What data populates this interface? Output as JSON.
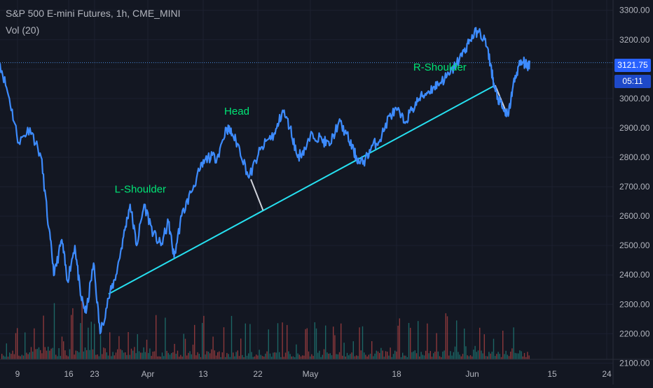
{
  "header": {
    "title": "S&P 500 E-mini Futures, 1h, CME_MINI",
    "volume_label": "Vol (20)"
  },
  "price_axis": {
    "current_price": "3121.75",
    "countdown": "05:11"
  },
  "colors": {
    "background": "#131722",
    "price_line": "#3d8bfd",
    "trend_line": "#26e0f0",
    "annotation_text": "#00e676",
    "vol_up": "#26a69a",
    "vol_down": "#ef5350",
    "axis_text": "#b2b5be",
    "grid": "#1c2030"
  },
  "chart_data": {
    "type": "line",
    "title": "S&P 500 E-mini Futures, 1h, CME_MINI",
    "xlabel": "",
    "ylabel": "",
    "x_tick_labels": [
      "9",
      "16",
      "23",
      "Apr",
      "13",
      "22",
      "May",
      "18",
      "Jun",
      "15",
      "24"
    ],
    "x_range_days": [
      3.0,
      68.5
    ],
    "y_ticks": [
      2100,
      2200,
      2300,
      2400,
      2500,
      2600,
      2700,
      2800,
      2900,
      3000,
      3100,
      3200,
      3300
    ],
    "y_tick_labels": [
      "2100.00",
      "2200.00",
      "2300.00",
      "2400.00",
      "2500.00",
      "2600.00",
      "2700.00",
      "2800.00",
      "2900.00",
      "3000.00",
      "3100.00",
      "3200.00",
      "3300.00"
    ],
    "ylim": [
      2070,
      3335
    ],
    "series": [
      {
        "type": "line",
        "points": [
          [
            3.0,
            3120
          ],
          [
            4.0,
            3000
          ],
          [
            5.0,
            2850
          ],
          [
            6.2,
            2900
          ],
          [
            7.4,
            2800
          ],
          [
            8.2,
            2560
          ],
          [
            8.8,
            2400
          ],
          [
            9.6,
            2520
          ],
          [
            10.2,
            2380
          ],
          [
            11.0,
            2500
          ],
          [
            11.6,
            2330
          ],
          [
            12.2,
            2270
          ],
          [
            13.0,
            2440
          ],
          [
            13.7,
            2200
          ],
          [
            14.6,
            2320
          ],
          [
            15.4,
            2400
          ],
          [
            16.2,
            2530
          ],
          [
            16.9,
            2640
          ],
          [
            17.6,
            2500
          ],
          [
            18.4,
            2640
          ],
          [
            19.4,
            2540
          ],
          [
            20.2,
            2500
          ],
          [
            21.0,
            2580
          ],
          [
            21.6,
            2460
          ],
          [
            22.4,
            2600
          ],
          [
            23.4,
            2680
          ],
          [
            24.4,
            2760
          ],
          [
            25.2,
            2800
          ],
          [
            26.2,
            2800
          ],
          [
            27.2,
            2900
          ],
          [
            27.8,
            2880
          ],
          [
            28.6,
            2830
          ],
          [
            29.6,
            2730
          ],
          [
            30.6,
            2810
          ],
          [
            31.6,
            2860
          ],
          [
            32.4,
            2880
          ],
          [
            33.2,
            2960
          ],
          [
            34.0,
            2900
          ],
          [
            34.8,
            2800
          ],
          [
            35.6,
            2830
          ],
          [
            36.4,
            2880
          ],
          [
            37.4,
            2860
          ],
          [
            38.2,
            2840
          ],
          [
            39.2,
            2920
          ],
          [
            40.0,
            2880
          ],
          [
            40.8,
            2820
          ],
          [
            41.4,
            2780
          ],
          [
            42.0,
            2790
          ],
          [
            42.8,
            2840
          ],
          [
            43.6,
            2860
          ],
          [
            44.6,
            2940
          ],
          [
            45.4,
            2960
          ],
          [
            46.2,
            2920
          ],
          [
            47.0,
            2960
          ],
          [
            47.8,
            3000
          ],
          [
            48.6,
            3020
          ],
          [
            49.4,
            3040
          ],
          [
            50.2,
            3060
          ],
          [
            51.0,
            3080
          ],
          [
            51.8,
            3120
          ],
          [
            52.6,
            3160
          ],
          [
            53.2,
            3200
          ],
          [
            54.0,
            3230
          ],
          [
            54.8,
            3200
          ],
          [
            55.4,
            3120
          ],
          [
            55.8,
            3040
          ],
          [
            56.2,
            3000
          ],
          [
            56.8,
            2960
          ],
          [
            57.3,
            2940
          ],
          [
            57.8,
            3040
          ],
          [
            58.4,
            3110
          ],
          [
            58.9,
            3125
          ],
          [
            59.3,
            3110
          ],
          [
            59.6,
            3120
          ]
        ]
      },
      {
        "type": "trend_line",
        "points": [
          [
            14.6,
            2335
          ],
          [
            55.9,
            3045
          ]
        ]
      }
    ],
    "annotations": [
      {
        "text": "L-Shoulder",
        "x": 18.0,
        "y": 2680
      },
      {
        "text": "Head",
        "x": 28.3,
        "y": 2945
      },
      {
        "text": "R-Shoulder",
        "x": 50.0,
        "y": 3095
      }
    ],
    "neckline_markers": [
      {
        "x1": 29.8,
        "y1": 2725,
        "x2": 31.1,
        "y2": 2620
      },
      {
        "x1": 55.9,
        "y1": 3045,
        "x2": 57.2,
        "y2": 2945
      }
    ],
    "current_price_line": 3121.75,
    "volume_panel": {
      "label": "Vol (20)",
      "note": "hourly volume bars along the bottom of the chart"
    }
  }
}
